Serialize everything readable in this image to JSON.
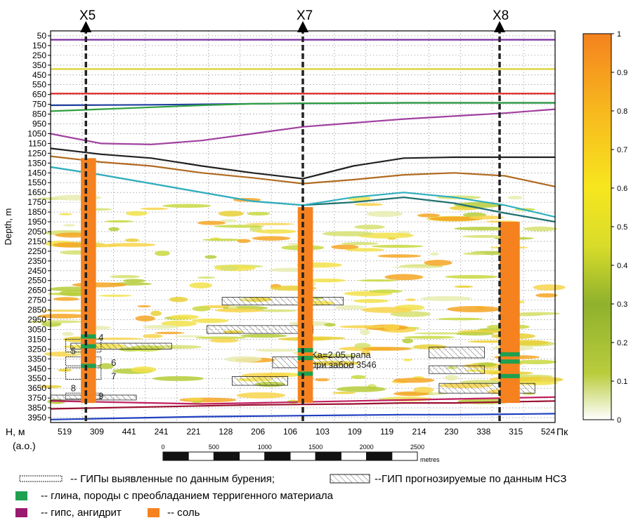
{
  "wells": [
    {
      "name": "X5",
      "bottom_depth": 3800,
      "salt_top": 1300
    },
    {
      "name": "X7",
      "bottom_depth": 3800,
      "salt_top": 1800
    },
    {
      "name": "X8",
      "bottom_depth": 3800,
      "salt_top": 1950
    }
  ],
  "chart_data": {
    "type": "heatmap",
    "ylabel": "Depth, m",
    "y_ticks": [
      50,
      150,
      250,
      350,
      450,
      550,
      650,
      750,
      850,
      950,
      1050,
      1150,
      1250,
      1350,
      1450,
      1550,
      1650,
      1750,
      1850,
      1950,
      2050,
      2150,
      2250,
      2350,
      2450,
      2550,
      2650,
      2750,
      2850,
      2950,
      3050,
      3150,
      3250,
      3350,
      3450,
      3550,
      3650,
      3750,
      3850,
      3950
    ],
    "ylim": [
      4000,
      0
    ],
    "x_label": "Н, м",
    "x_label2": "(а.о.)",
    "x_unit": "Пк",
    "x_ticks": [
      "519",
      "309",
      "441",
      "241",
      "221",
      "128",
      "206",
      "106",
      "103",
      "109",
      "119",
      "214",
      "230",
      "338",
      "315",
      "524"
    ],
    "colorbar": {
      "min": 0,
      "max": 1,
      "ticks": [
        "0",
        "0.1",
        "0.2",
        "0.3",
        "0.4",
        "0.5",
        "0.6",
        "0.7",
        "0.8",
        "0.9",
        "1"
      ]
    },
    "scale_bar": {
      "ticks": [
        "0",
        "500",
        "1000",
        "1500",
        "2000",
        "2500"
      ],
      "unit": "metres"
    },
    "annotations": [
      "Ka=2.05, рапа",
      "при забое 3546",
      "4",
      "5",
      "6",
      "7",
      "8",
      "9"
    ],
    "horizons": [
      {
        "color": "#7a2ea0",
        "depths": [
          90,
          90,
          90,
          90,
          90,
          90,
          90,
          90,
          90,
          90,
          90
        ]
      },
      {
        "color": "#d8d030",
        "depths": [
          390,
          390,
          390,
          390,
          390,
          390,
          390,
          390,
          390,
          390,
          390
        ]
      },
      {
        "color": "#e02020",
        "depths": [
          640,
          640,
          640,
          640,
          640,
          640,
          640,
          640,
          640,
          640,
          640
        ]
      },
      {
        "color": "#2040a0",
        "depths": [
          760,
          758,
          755,
          750,
          745,
          740,
          738,
          735,
          735,
          735,
          735
        ]
      },
      {
        "color": "#30a040",
        "depths": [
          820,
          800,
          780,
          760,
          745,
          740,
          738,
          735,
          735,
          735,
          735
        ]
      },
      {
        "color": "#a040a0",
        "depths": [
          1050,
          1150,
          1160,
          1120,
          1050,
          980,
          940,
          900,
          870,
          840,
          800
        ]
      },
      {
        "color": "#202020",
        "depths": [
          1200,
          1260,
          1300,
          1380,
          1450,
          1510,
          1380,
          1300,
          1290,
          1290,
          1290
        ]
      },
      {
        "color": "#b06a20",
        "depths": [
          1280,
          1340,
          1380,
          1450,
          1500,
          1560,
          1520,
          1470,
          1450,
          1480,
          1590
        ]
      },
      {
        "color": "#207070",
        "depths": [
          1390,
          1470,
          1560,
          1650,
          1740,
          1780,
          1750,
          1700,
          1760,
          1860,
          1950
        ]
      },
      {
        "color": "#30b0c0",
        "depths": [
          1390,
          1470,
          1560,
          1650,
          1740,
          1780,
          1700,
          1650,
          1700,
          1780,
          1900
        ]
      },
      {
        "color": "#c02060",
        "depths": [
          3780,
          3790,
          3800,
          3810,
          3800,
          3790,
          3780,
          3770,
          3760,
          3750,
          3740
        ]
      },
      {
        "color": "#9a1030",
        "depths": [
          3860,
          3850,
          3840,
          3830,
          3820,
          3815,
          3810,
          3800,
          3800,
          3790,
          3780
        ]
      },
      {
        "color": "#2040c0",
        "depths": [
          3970,
          3960,
          3950,
          3940,
          3935,
          3930,
          3925,
          3920,
          3920,
          3915,
          3910
        ]
      }
    ],
    "gip_drilled": [
      {
        "well": "X5",
        "top": 3150,
        "bottom": 3280
      },
      {
        "well": "X5",
        "top": 3330,
        "bottom": 3420
      },
      {
        "well": "X5",
        "top": 3440,
        "bottom": 3560
      },
      {
        "well": "X5",
        "top": 3700,
        "bottom": 3760
      }
    ],
    "gip_predicted": [
      {
        "x0": 0.34,
        "x1": 0.58,
        "top": 2720,
        "bottom": 2800
      },
      {
        "x0": 0.31,
        "x1": 0.52,
        "top": 3010,
        "bottom": 3090
      },
      {
        "x0": 0.44,
        "x1": 0.6,
        "top": 3330,
        "bottom": 3440
      },
      {
        "x0": 0.36,
        "x1": 0.47,
        "top": 3530,
        "bottom": 3620
      },
      {
        "x0": 0.04,
        "x1": 0.24,
        "top": 3190,
        "bottom": 3250
      },
      {
        "x0": 0.0,
        "x1": 0.17,
        "top": 3720,
        "bottom": 3770
      },
      {
        "x0": 0.75,
        "x1": 0.86,
        "top": 3230,
        "bottom": 3340
      },
      {
        "x0": 0.75,
        "x1": 0.86,
        "top": 3420,
        "bottom": 3500
      },
      {
        "x0": 0.77,
        "x1": 0.96,
        "top": 3600,
        "bottom": 3700
      }
    ]
  },
  "legend": {
    "gip_drilled": "-- ГИПы выявленные по данным бурения;",
    "gip_predicted": "--ГИП прогнозируемые по данным НСЗ",
    "clay": "-- глина, породы с преобладанием терригенного материала",
    "gypsum": "-- гипс, ангидрит",
    "salt": "-- соль",
    "colors": {
      "clay": "#1ea050",
      "gypsum": "#9a1a70",
      "salt": "#f5821f"
    }
  }
}
